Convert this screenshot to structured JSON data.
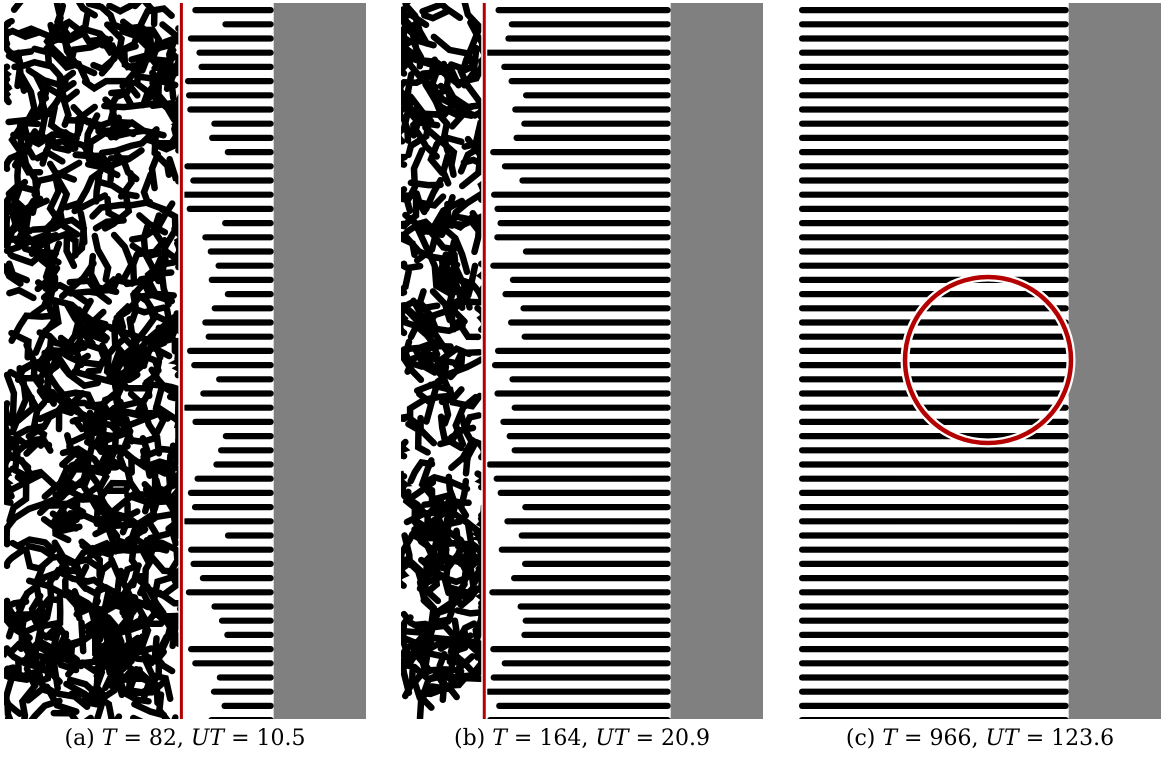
{
  "figure": {
    "panels": [
      {
        "id": "a",
        "label": "(a)",
        "T_value": "82",
        "UT_value": "10.5",
        "front_pattern": "labyrinth",
        "stripe_region_end_fraction": 0.745,
        "interface_fraction": 0.49,
        "has_interface_line": true,
        "has_circle": false
      },
      {
        "id": "b",
        "label": "(b)",
        "T_value": "164",
        "UT_value": "20.9",
        "front_pattern": "labyrinth",
        "stripe_region_end_fraction": 0.745,
        "interface_fraction": 0.23,
        "has_interface_line": true,
        "has_circle": false
      },
      {
        "id": "c",
        "label": "(c)",
        "T_value": "966",
        "UT_value": "123.6",
        "front_pattern": "stripes",
        "stripe_region_end_fraction": 0.745,
        "interface_fraction": 0.0,
        "has_interface_line": false,
        "has_circle": true
      }
    ],
    "colors": {
      "stripe_dark": "#000000",
      "stripe_light": "#ffffff",
      "uniform_state": "#808080",
      "interface_line": "#b40000",
      "circle_outline": "#b40000"
    }
  }
}
